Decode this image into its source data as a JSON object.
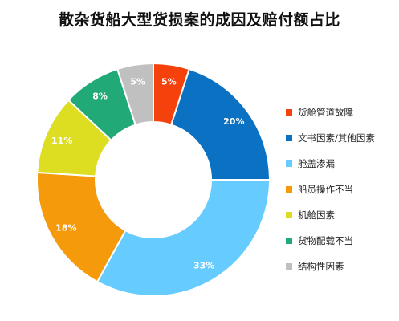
{
  "chart_data": {
    "type": "pie",
    "donut": true,
    "title": "散杂货船大型货损案的成因及赔付额占比",
    "categories": [
      "货舱管道故障",
      "文书因素/其他因素",
      "舱盖渗漏",
      "船员操作不当",
      "机舱因素",
      "货物配载不当",
      "结构性因素"
    ],
    "values": [
      5,
      20,
      33,
      18,
      11,
      8,
      5
    ],
    "data_labels": [
      "5%",
      "20%",
      "33%",
      "18%",
      "11%",
      "8%",
      "5%"
    ],
    "colors": [
      "#F5420D",
      "#0B71C2",
      "#66CCFF",
      "#F59A0B",
      "#DDDD22",
      "#21AA77",
      "#C0C0C0"
    ],
    "legend_position": "right"
  }
}
